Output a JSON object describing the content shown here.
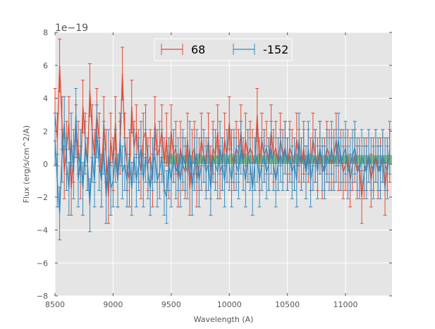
{
  "chart_data": {
    "type": "line",
    "title": "",
    "xlabel": "Wavelength (A)",
    "ylabel": "Flux (erg/s/cm^2/A)",
    "y_offset_label": "1e−19",
    "xlim": [
      8500,
      11400
    ],
    "ylim": [
      -8,
      8
    ],
    "x_ticks": [
      8500,
      9000,
      9500,
      10000,
      10500,
      11000
    ],
    "x_tick_labels": [
      "8500",
      "9000",
      "9500",
      "10000",
      "10500",
      "11000"
    ],
    "y_ticks": [
      -8,
      -6,
      -4,
      -2,
      0,
      2,
      4,
      6,
      8
    ],
    "y_tick_labels": [
      "−8",
      "−6",
      "−4",
      "−2",
      "0",
      "2",
      "4",
      "6",
      "8"
    ],
    "grid": true,
    "legend_position": "top-center",
    "band": {
      "x_start": 9450,
      "x_end": 11400,
      "y_low": 0.0,
      "y_high": 0.55,
      "color": "#2ca02c"
    },
    "series": [
      {
        "name": "68",
        "color": "#e24a33",
        "error": 1.6,
        "x": [
          8500,
          8520,
          8540,
          8560,
          8580,
          8600,
          8620,
          8640,
          8660,
          8680,
          8700,
          8720,
          8740,
          8760,
          8780,
          8800,
          8820,
          8840,
          8860,
          8880,
          8900,
          8920,
          8940,
          8960,
          8980,
          9000,
          9020,
          9040,
          9060,
          9080,
          9100,
          9120,
          9140,
          9160,
          9180,
          9200,
          9220,
          9240,
          9260,
          9280,
          9300,
          9320,
          9340,
          9360,
          9380,
          9400,
          9420,
          9440,
          9460,
          9480,
          9500,
          9520,
          9540,
          9560,
          9580,
          9600,
          9620,
          9640,
          9660,
          9680,
          9700,
          9720,
          9740,
          9760,
          9780,
          9800,
          9820,
          9840,
          9860,
          9880,
          9900,
          9920,
          9940,
          9960,
          9980,
          10000,
          10020,
          10040,
          10060,
          10080,
          10100,
          10120,
          10140,
          10160,
          10180,
          10200,
          10220,
          10240,
          10260,
          10280,
          10300,
          10320,
          10340,
          10360,
          10380,
          10400,
          10420,
          10440,
          10460,
          10480,
          10500,
          10520,
          10540,
          10560,
          10580,
          10600,
          10620,
          10640,
          10660,
          10680,
          10700,
          10720,
          10740,
          10760,
          10780,
          10800,
          10820,
          10840,
          10860,
          10880,
          10900,
          10920,
          10940,
          10960,
          10980,
          11000,
          11020,
          11040,
          11060,
          11080,
          11100,
          11120,
          11140,
          11160,
          11180,
          11200,
          11220,
          11240,
          11260,
          11280,
          11300,
          11320,
          11340,
          11360,
          11380
        ],
        "y": [
          3.0,
          1.5,
          6.0,
          2.5,
          -0.5,
          1.0,
          2.5,
          -1.5,
          0.5,
          2.0,
          1.0,
          -0.5,
          3.5,
          1.5,
          0.0,
          4.5,
          2.0,
          0.5,
          3.0,
          1.5,
          -1.0,
          2.5,
          0.5,
          -2.0,
          1.5,
          0.0,
          2.5,
          -1.0,
          1.0,
          5.5,
          1.5,
          0.0,
          -1.0,
          3.5,
          1.0,
          2.0,
          0.5,
          -0.5,
          1.5,
          2.0,
          0.0,
          0.5,
          -1.0,
          2.5,
          0.5,
          1.0,
          2.0,
          0.0,
          1.5,
          -0.5,
          2.0,
          0.5,
          1.0,
          -1.0,
          1.0,
          0.0,
          -0.5,
          1.5,
          -1.5,
          0.5,
          1.0,
          -1.0,
          0.0,
          1.5,
          0.5,
          0.0,
          1.5,
          -0.5,
          1.0,
          0.5,
          2.0,
          -0.5,
          0.0,
          1.5,
          0.5,
          2.5,
          0.5,
          0.0,
          1.0,
          0.5,
          2.0,
          0.0,
          1.5,
          0.5,
          1.0,
          0.5,
          0.0,
          3.0,
          0.0,
          1.5,
          0.5,
          1.0,
          0.0,
          2.0,
          0.5,
          1.0,
          0.0,
          1.5,
          0.5,
          1.0,
          0.0,
          1.0,
          0.5,
          0.0,
          1.5,
          0.5,
          0.0,
          1.0,
          -0.5,
          0.5,
          0.0,
          1.5,
          0.5,
          0.0,
          1.0,
          -0.5,
          0.0,
          1.0,
          0.5,
          0.0,
          0.5,
          1.5,
          0.0,
          0.5,
          -0.5,
          0.0,
          0.5,
          -1.0,
          0.0,
          0.5,
          -0.5,
          0.0,
          -2.0,
          -0.5,
          0.0,
          0.5,
          -1.0,
          0.0,
          0.5,
          -0.5,
          0.0,
          0.5,
          -1.5,
          0.0,
          0.5
        ]
      },
      {
        "name": "-152",
        "color": "#348abd",
        "error": 1.6,
        "x": [
          8500,
          8520,
          8540,
          8560,
          8580,
          8600,
          8620,
          8640,
          8660,
          8680,
          8700,
          8720,
          8740,
          8760,
          8780,
          8800,
          8820,
          8840,
          8860,
          8880,
          8900,
          8920,
          8940,
          8960,
          8980,
          9000,
          9020,
          9040,
          9060,
          9080,
          9100,
          9120,
          9140,
          9160,
          9180,
          9200,
          9220,
          9240,
          9260,
          9280,
          9300,
          9320,
          9340,
          9360,
          9380,
          9400,
          9420,
          9440,
          9460,
          9480,
          9500,
          9520,
          9540,
          9560,
          9580,
          9600,
          9620,
          9640,
          9660,
          9680,
          9700,
          9720,
          9740,
          9760,
          9780,
          9800,
          9820,
          9840,
          9860,
          9880,
          9900,
          9920,
          9940,
          9960,
          9980,
          10000,
          10020,
          10040,
          10060,
          10080,
          10100,
          10120,
          10140,
          10160,
          10180,
          10200,
          10220,
          10240,
          10260,
          10280,
          10300,
          10320,
          10340,
          10360,
          10380,
          10400,
          10420,
          10440,
          10460,
          10480,
          10500,
          10520,
          10540,
          10560,
          10580,
          10600,
          10620,
          10640,
          10660,
          10680,
          10700,
          10720,
          10740,
          10760,
          10780,
          10800,
          10820,
          10840,
          10860,
          10880,
          10900,
          10920,
          10940,
          10960,
          10980,
          11000,
          11020,
          11040,
          11060,
          11080,
          11100,
          11120,
          11140,
          11160,
          11180,
          11200,
          11220,
          11240,
          11260,
          11280,
          11300,
          11320,
          11340,
          11360,
          11380
        ],
        "y": [
          1.5,
          -1.0,
          -3.0,
          0.5,
          2.5,
          0.0,
          -1.5,
          1.5,
          -0.5,
          3.0,
          -1.0,
          0.5,
          -1.5,
          1.0,
          0.0,
          -2.5,
          0.5,
          -1.0,
          2.0,
          0.0,
          -1.0,
          1.0,
          -2.0,
          0.5,
          -1.5,
          -1.0,
          0.5,
          -1.0,
          1.5,
          -0.5,
          0.0,
          -1.0,
          0.5,
          -1.5,
          0.5,
          -1.0,
          0.0,
          1.0,
          -1.0,
          0.5,
          -0.5,
          -1.5,
          0.0,
          0.5,
          -1.0,
          -0.5,
          0.5,
          -1.5,
          -2.0,
          0.0,
          -1.0,
          0.5,
          -0.5,
          0.0,
          -1.0,
          0.5,
          0.0,
          -0.5,
          1.0,
          -1.5,
          0.0,
          0.5,
          -1.0,
          0.0,
          0.5,
          -0.5,
          0.0,
          -1.5,
          0.5,
          0.0,
          -0.5,
          1.0,
          0.0,
          -1.0,
          0.5,
          0.0,
          -1.0,
          0.5,
          0.0,
          -0.5,
          1.0,
          0.0,
          -1.0,
          0.5,
          0.0,
          -1.5,
          0.0,
          0.5,
          -1.0,
          0.0,
          0.5,
          -0.5,
          0.0,
          1.0,
          0.0,
          -1.0,
          0.0,
          0.5,
          0.0,
          1.0,
          0.0,
          0.5,
          -0.5,
          0.0,
          -1.0,
          1.5,
          0.0,
          0.5,
          -0.5,
          1.0,
          -1.0,
          0.0,
          0.5,
          -0.5,
          1.0,
          0.0,
          -0.5,
          0.5,
          0.0,
          1.0,
          0.0,
          0.5,
          1.5,
          0.0,
          0.5,
          1.0,
          -0.5,
          0.0,
          0.5,
          1.0,
          0.0,
          -0.5,
          0.5,
          0.0,
          -0.5,
          0.5,
          0.0,
          -0.5,
          0.5,
          0.0,
          -0.5,
          0.5,
          0.0,
          -0.5,
          1.0
        ]
      }
    ]
  }
}
